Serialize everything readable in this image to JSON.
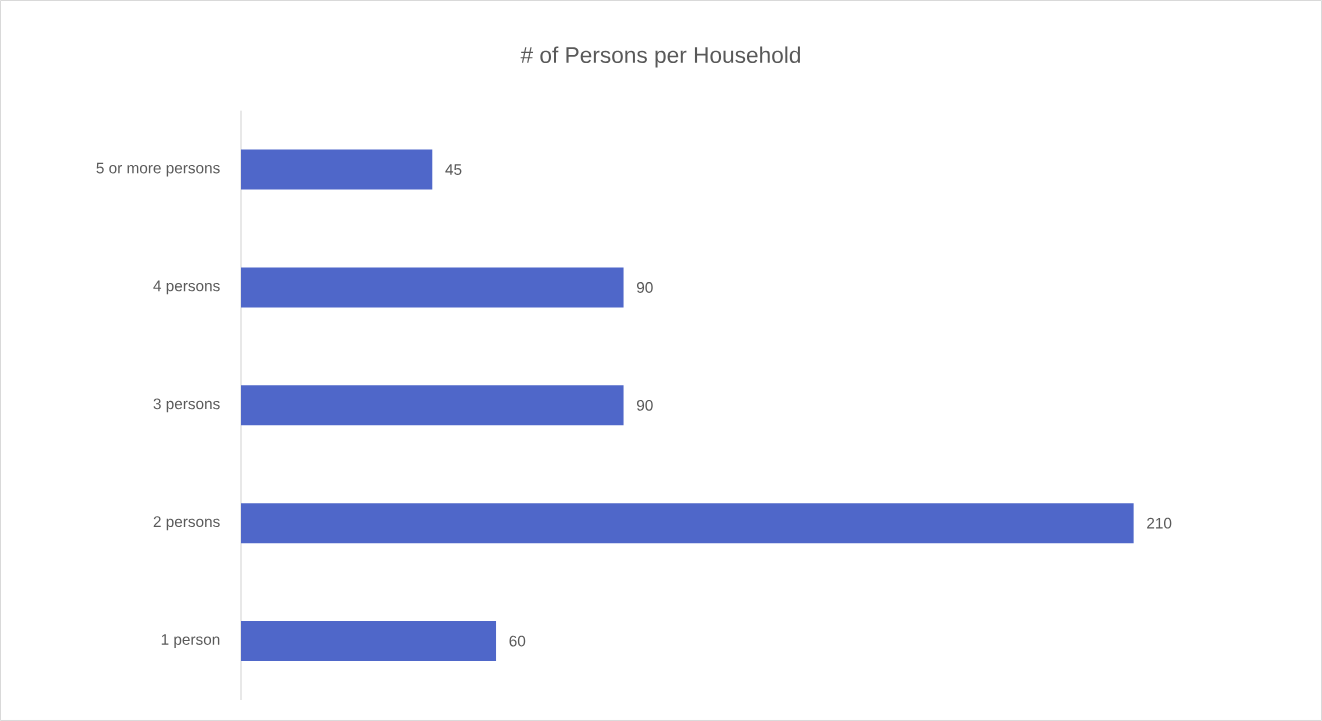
{
  "chart_data": {
    "type": "bar",
    "orientation": "horizontal",
    "title": "# of Persons per Household",
    "categories": [
      "5 or more persons",
      "4 persons",
      "3 persons",
      "2 persons",
      "1 person"
    ],
    "values": [
      45,
      90,
      90,
      210,
      60
    ],
    "color": "#4f67c9",
    "data_labels": true
  }
}
